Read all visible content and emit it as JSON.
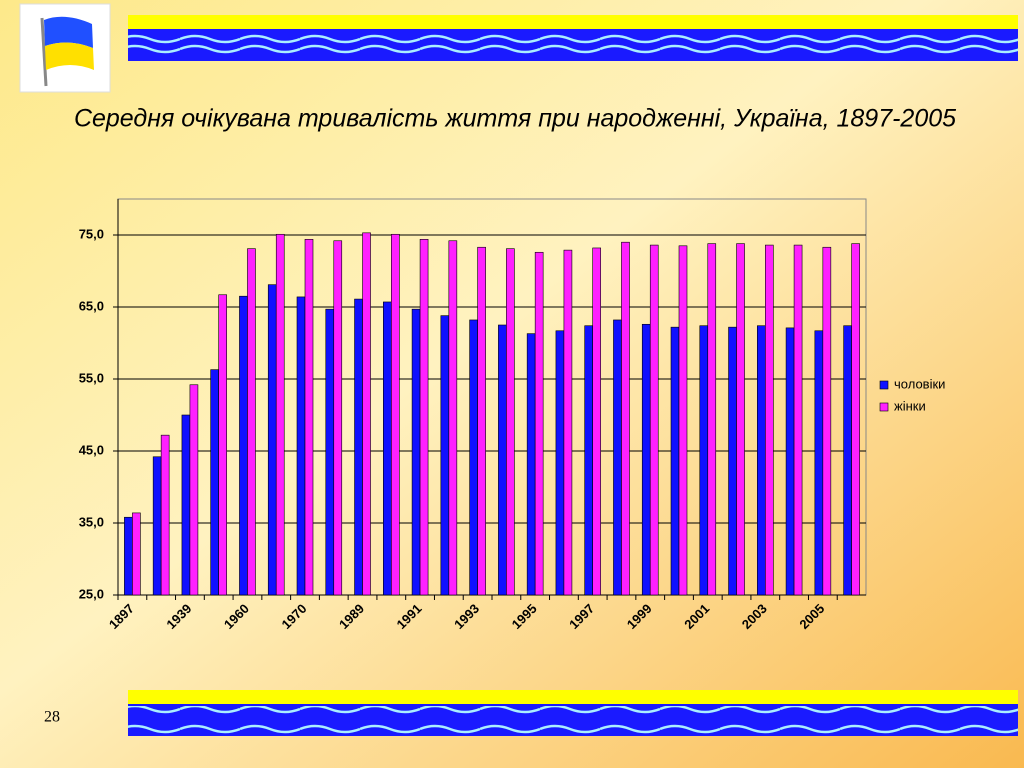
{
  "page_number": "28",
  "chart_data": {
    "type": "bar",
    "title": "Середня очікувана тривалість життя при народженні, Україна, 1897-2005",
    "categories": [
      "1897",
      null,
      "1939",
      null,
      "1960",
      null,
      "1970",
      null,
      "1989",
      null,
      "1991",
      null,
      "1993",
      null,
      "1995",
      null,
      "1997",
      null,
      "1999",
      null,
      "2001",
      null,
      "2003",
      null,
      "2005",
      null
    ],
    "series": [
      {
        "name": "чоловіки",
        "color": "#1010ff",
        "values": [
          35.8,
          44.2,
          50.0,
          56.3,
          66.5,
          68.1,
          66.4,
          64.7,
          66.1,
          65.7,
          64.7,
          63.8,
          63.2,
          62.5,
          61.3,
          61.7,
          62.4,
          63.2,
          62.6,
          62.2,
          62.4,
          62.2,
          62.4,
          62.1,
          61.7,
          62.4
        ]
      },
      {
        "name": "жінки",
        "color": "#ff20ff",
        "values": [
          36.4,
          47.2,
          54.2,
          66.7,
          73.1,
          75.1,
          74.4,
          74.2,
          75.3,
          75.1,
          74.4,
          74.2,
          73.3,
          73.1,
          72.6,
          72.9,
          73.2,
          74.0,
          73.6,
          73.5,
          73.8,
          73.8,
          73.6,
          73.6,
          73.3,
          73.8
        ]
      }
    ],
    "ylim": [
      25,
      80
    ],
    "yticks": [
      {
        "value": 25,
        "label": "25,0"
      },
      {
        "value": 35,
        "label": "35,0"
      },
      {
        "value": 45,
        "label": "45,0"
      },
      {
        "value": 55,
        "label": "55,0"
      },
      {
        "value": 65,
        "label": "65,0"
      },
      {
        "value": 75,
        "label": "75,0"
      }
    ],
    "grid": true,
    "legend": "right"
  }
}
